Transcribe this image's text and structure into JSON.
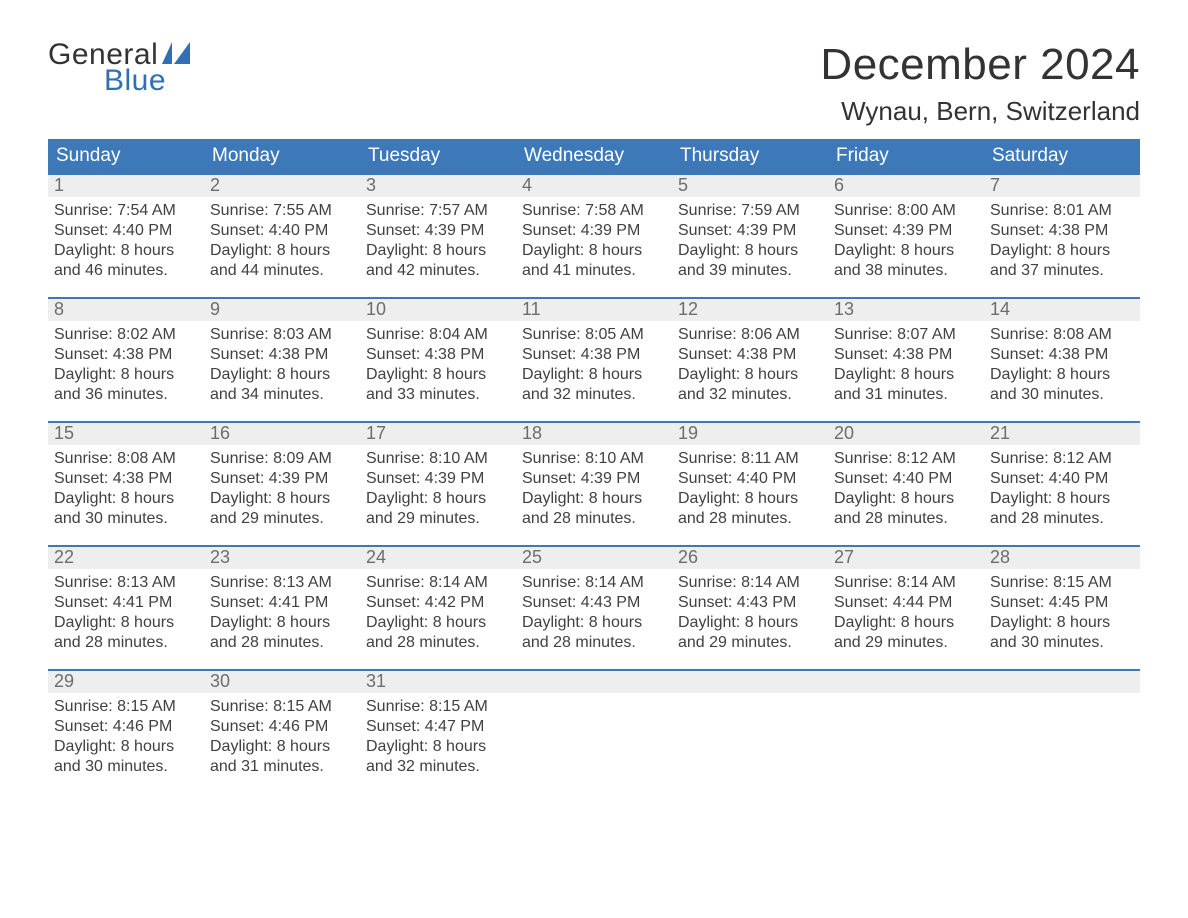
{
  "brand": {
    "line1": "General",
    "line2": "Blue",
    "accent_color": "#2f6fb3"
  },
  "title": "December 2024",
  "location": "Wynau, Bern, Switzerland",
  "colors": {
    "header_bar": "#3d78b8",
    "header_text": "#ffffff",
    "daynum_bg": "#eeeeee",
    "daynum_text": "#6d6d6d",
    "body_text": "#414141",
    "rule": "#3d78b8",
    "page_bg": "#ffffff"
  },
  "typography": {
    "title_fontsize": 44,
    "location_fontsize": 26,
    "dow_fontsize": 19,
    "daynum_fontsize": 18,
    "body_fontsize": 16,
    "font_family": "Arial"
  },
  "layout": {
    "columns": 7,
    "rows": 5,
    "cell_min_height": 112
  },
  "days_of_week": [
    "Sunday",
    "Monday",
    "Tuesday",
    "Wednesday",
    "Thursday",
    "Friday",
    "Saturday"
  ],
  "weeks": [
    [
      {
        "n": "1",
        "sunrise": "Sunrise: 7:54 AM",
        "sunset": "Sunset: 4:40 PM",
        "daylight": "Daylight: 8 hours and 46 minutes."
      },
      {
        "n": "2",
        "sunrise": "Sunrise: 7:55 AM",
        "sunset": "Sunset: 4:40 PM",
        "daylight": "Daylight: 8 hours and 44 minutes."
      },
      {
        "n": "3",
        "sunrise": "Sunrise: 7:57 AM",
        "sunset": "Sunset: 4:39 PM",
        "daylight": "Daylight: 8 hours and 42 minutes."
      },
      {
        "n": "4",
        "sunrise": "Sunrise: 7:58 AM",
        "sunset": "Sunset: 4:39 PM",
        "daylight": "Daylight: 8 hours and 41 minutes."
      },
      {
        "n": "5",
        "sunrise": "Sunrise: 7:59 AM",
        "sunset": "Sunset: 4:39 PM",
        "daylight": "Daylight: 8 hours and 39 minutes."
      },
      {
        "n": "6",
        "sunrise": "Sunrise: 8:00 AM",
        "sunset": "Sunset: 4:39 PM",
        "daylight": "Daylight: 8 hours and 38 minutes."
      },
      {
        "n": "7",
        "sunrise": "Sunrise: 8:01 AM",
        "sunset": "Sunset: 4:38 PM",
        "daylight": "Daylight: 8 hours and 37 minutes."
      }
    ],
    [
      {
        "n": "8",
        "sunrise": "Sunrise: 8:02 AM",
        "sunset": "Sunset: 4:38 PM",
        "daylight": "Daylight: 8 hours and 36 minutes."
      },
      {
        "n": "9",
        "sunrise": "Sunrise: 8:03 AM",
        "sunset": "Sunset: 4:38 PM",
        "daylight": "Daylight: 8 hours and 34 minutes."
      },
      {
        "n": "10",
        "sunrise": "Sunrise: 8:04 AM",
        "sunset": "Sunset: 4:38 PM",
        "daylight": "Daylight: 8 hours and 33 minutes."
      },
      {
        "n": "11",
        "sunrise": "Sunrise: 8:05 AM",
        "sunset": "Sunset: 4:38 PM",
        "daylight": "Daylight: 8 hours and 32 minutes."
      },
      {
        "n": "12",
        "sunrise": "Sunrise: 8:06 AM",
        "sunset": "Sunset: 4:38 PM",
        "daylight": "Daylight: 8 hours and 32 minutes."
      },
      {
        "n": "13",
        "sunrise": "Sunrise: 8:07 AM",
        "sunset": "Sunset: 4:38 PM",
        "daylight": "Daylight: 8 hours and 31 minutes."
      },
      {
        "n": "14",
        "sunrise": "Sunrise: 8:08 AM",
        "sunset": "Sunset: 4:38 PM",
        "daylight": "Daylight: 8 hours and 30 minutes."
      }
    ],
    [
      {
        "n": "15",
        "sunrise": "Sunrise: 8:08 AM",
        "sunset": "Sunset: 4:38 PM",
        "daylight": "Daylight: 8 hours and 30 minutes."
      },
      {
        "n": "16",
        "sunrise": "Sunrise: 8:09 AM",
        "sunset": "Sunset: 4:39 PM",
        "daylight": "Daylight: 8 hours and 29 minutes."
      },
      {
        "n": "17",
        "sunrise": "Sunrise: 8:10 AM",
        "sunset": "Sunset: 4:39 PM",
        "daylight": "Daylight: 8 hours and 29 minutes."
      },
      {
        "n": "18",
        "sunrise": "Sunrise: 8:10 AM",
        "sunset": "Sunset: 4:39 PM",
        "daylight": "Daylight: 8 hours and 28 minutes."
      },
      {
        "n": "19",
        "sunrise": "Sunrise: 8:11 AM",
        "sunset": "Sunset: 4:40 PM",
        "daylight": "Daylight: 8 hours and 28 minutes."
      },
      {
        "n": "20",
        "sunrise": "Sunrise: 8:12 AM",
        "sunset": "Sunset: 4:40 PM",
        "daylight": "Daylight: 8 hours and 28 minutes."
      },
      {
        "n": "21",
        "sunrise": "Sunrise: 8:12 AM",
        "sunset": "Sunset: 4:40 PM",
        "daylight": "Daylight: 8 hours and 28 minutes."
      }
    ],
    [
      {
        "n": "22",
        "sunrise": "Sunrise: 8:13 AM",
        "sunset": "Sunset: 4:41 PM",
        "daylight": "Daylight: 8 hours and 28 minutes."
      },
      {
        "n": "23",
        "sunrise": "Sunrise: 8:13 AM",
        "sunset": "Sunset: 4:41 PM",
        "daylight": "Daylight: 8 hours and 28 minutes."
      },
      {
        "n": "24",
        "sunrise": "Sunrise: 8:14 AM",
        "sunset": "Sunset: 4:42 PM",
        "daylight": "Daylight: 8 hours and 28 minutes."
      },
      {
        "n": "25",
        "sunrise": "Sunrise: 8:14 AM",
        "sunset": "Sunset: 4:43 PM",
        "daylight": "Daylight: 8 hours and 28 minutes."
      },
      {
        "n": "26",
        "sunrise": "Sunrise: 8:14 AM",
        "sunset": "Sunset: 4:43 PM",
        "daylight": "Daylight: 8 hours and 29 minutes."
      },
      {
        "n": "27",
        "sunrise": "Sunrise: 8:14 AM",
        "sunset": "Sunset: 4:44 PM",
        "daylight": "Daylight: 8 hours and 29 minutes."
      },
      {
        "n": "28",
        "sunrise": "Sunrise: 8:15 AM",
        "sunset": "Sunset: 4:45 PM",
        "daylight": "Daylight: 8 hours and 30 minutes."
      }
    ],
    [
      {
        "n": "29",
        "sunrise": "Sunrise: 8:15 AM",
        "sunset": "Sunset: 4:46 PM",
        "daylight": "Daylight: 8 hours and 30 minutes."
      },
      {
        "n": "30",
        "sunrise": "Sunrise: 8:15 AM",
        "sunset": "Sunset: 4:46 PM",
        "daylight": "Daylight: 8 hours and 31 minutes."
      },
      {
        "n": "31",
        "sunrise": "Sunrise: 8:15 AM",
        "sunset": "Sunset: 4:47 PM",
        "daylight": "Daylight: 8 hours and 32 minutes."
      },
      null,
      null,
      null,
      null
    ]
  ]
}
